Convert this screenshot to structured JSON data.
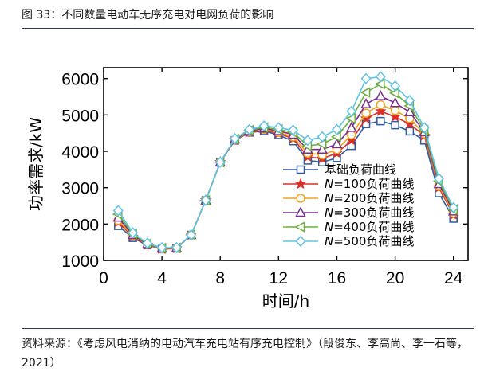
{
  "header": {
    "title": "图 33：不同数量电动车无序充电对电网负荷的影响"
  },
  "footer": {
    "source": "资料来源：《考虑风电消纳的电动汽车充电站有序充电控制》（段俊东、李高尚、李一石等，2021）"
  },
  "chart_data": {
    "type": "line",
    "title": "",
    "xlabel": "时间/h",
    "ylabel": "功率需求/kW",
    "xlim": [
      0,
      25
    ],
    "ylim": [
      1000,
      6300
    ],
    "xticks": [
      0,
      4,
      8,
      12,
      16,
      20,
      24
    ],
    "yticks": [
      1000,
      2000,
      3000,
      4000,
      5000,
      6000
    ],
    "legend_position": "lower-right",
    "x": [
      1,
      2,
      3,
      4,
      5,
      6,
      7,
      8,
      9,
      10,
      11,
      12,
      13,
      14,
      15,
      16,
      17,
      18,
      19,
      20,
      21,
      22,
      23,
      24
    ],
    "series": [
      {
        "name": "基础负荷曲线",
        "italic": "",
        "suffix": "基础负荷曲线",
        "color": "#2e5c9e",
        "marker": "square",
        "values": [
          1950,
          1620,
          1420,
          1310,
          1330,
          1700,
          2650,
          3700,
          4300,
          4520,
          4560,
          4450,
          4280,
          3750,
          3700,
          3820,
          4150,
          4750,
          4830,
          4720,
          4550,
          4300,
          2850,
          2150
        ]
      },
      {
        "name": "N=100负荷曲线",
        "italic": "N",
        "suffix": "=100负荷曲线",
        "color": "#d9302c",
        "marker": "star",
        "values": [
          2050,
          1650,
          1430,
          1310,
          1330,
          1700,
          2650,
          3700,
          4310,
          4530,
          4590,
          4490,
          4350,
          3850,
          3800,
          3950,
          4300,
          4900,
          5100,
          4950,
          4750,
          4430,
          3000,
          2250
        ]
      },
      {
        "name": "N=200负荷曲线",
        "italic": "N",
        "suffix": "=200负荷曲线",
        "color": "#f0a31f",
        "marker": "circle",
        "values": [
          2100,
          1680,
          1440,
          1320,
          1335,
          1700,
          2650,
          3700,
          4320,
          4545,
          4610,
          4520,
          4400,
          3950,
          3900,
          4050,
          4450,
          5050,
          5280,
          5120,
          4900,
          4480,
          3050,
          2300
        ]
      },
      {
        "name": "N=300负荷曲线",
        "italic": "N",
        "suffix": "=300负荷曲线",
        "color": "#7a2f8f",
        "marker": "triangle-up",
        "values": [
          2180,
          1700,
          1450,
          1330,
          1340,
          1700,
          2650,
          3700,
          4330,
          4560,
          4630,
          4560,
          4460,
          4050,
          4050,
          4200,
          4650,
          5300,
          5520,
          5330,
          5080,
          4530,
          3100,
          2350
        ]
      },
      {
        "name": "N=400负荷曲线",
        "italic": "N",
        "suffix": "=400负荷曲线",
        "color": "#6aae3c",
        "marker": "triangle-left",
        "values": [
          2270,
          1730,
          1460,
          1340,
          1345,
          1700,
          2650,
          3700,
          4340,
          4580,
          4660,
          4600,
          4520,
          4150,
          4200,
          4400,
          4900,
          5620,
          5850,
          5600,
          5250,
          4580,
          3180,
          2400
        ]
      },
      {
        "name": "N=500负荷曲线",
        "italic": "N",
        "suffix": "=500负荷曲线",
        "color": "#5fc3e4",
        "marker": "diamond",
        "values": [
          2370,
          1760,
          1470,
          1350,
          1350,
          1700,
          2650,
          3700,
          4350,
          4600,
          4700,
          4650,
          4580,
          4300,
          4400,
          4600,
          5100,
          6000,
          6050,
          5800,
          5400,
          4650,
          3250,
          2450
        ]
      }
    ]
  }
}
